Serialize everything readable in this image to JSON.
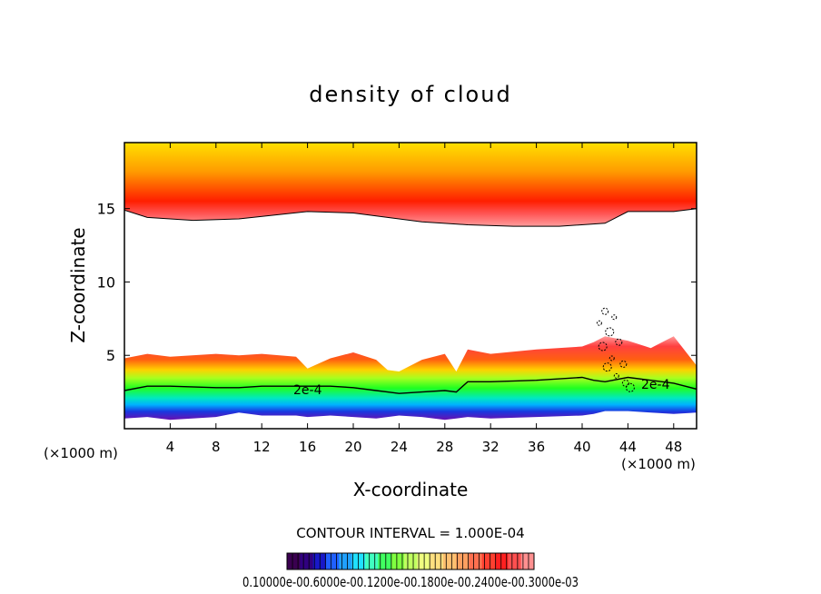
{
  "chart_data": {
    "type": "heatmap",
    "title": "density of cloud",
    "xlabel": "X-coordinate",
    "ylabel": "Z-coordinate",
    "x_unit_left": "(×1000 m)",
    "x_unit_right": "(×1000 m)",
    "xlim": [
      0,
      50
    ],
    "ylim": [
      0,
      19.5
    ],
    "x_ticks": [
      4,
      8,
      12,
      16,
      20,
      24,
      28,
      32,
      36,
      40,
      44,
      48
    ],
    "y_ticks": [
      5,
      10,
      15
    ],
    "contour_interval_text": "CONTOUR INTERVAL = 1.000E-04",
    "contour_label": "2e-4",
    "colorbar_labels_text": "0.10000e-00.6000e-00.1200e-00.1800e-00.2400e-00.3000e-03",
    "upper_layer": {
      "x": [
        0,
        2,
        6,
        10,
        16,
        20,
        26,
        30,
        34,
        38,
        42,
        44,
        48,
        50
      ],
      "bottom_z": [
        14.9,
        14.4,
        14.2,
        14.3,
        14.8,
        14.7,
        14.1,
        13.9,
        13.8,
        13.8,
        14.0,
        14.8,
        14.8,
        15.0
      ],
      "peak_z": [
        16.5,
        16.2,
        16.0,
        16.0,
        16.2,
        16.2,
        16.1,
        16.0,
        16.0,
        16.1,
        16.2,
        16.4,
        16.6,
        17.0
      ]
    },
    "lower_layer": {
      "x": [
        0,
        2,
        4,
        8,
        10,
        12,
        15,
        16,
        18,
        20,
        22,
        23,
        24,
        26,
        28,
        29,
        30,
        32,
        36,
        40,
        41,
        42,
        44,
        46,
        48,
        50
      ],
      "top_z": [
        4.8,
        5.1,
        4.9,
        5.1,
        5.0,
        5.1,
        4.9,
        4.1,
        4.8,
        5.2,
        4.7,
        4.0,
        3.9,
        4.7,
        5.1,
        3.9,
        5.4,
        5.1,
        5.4,
        5.6,
        5.9,
        6.3,
        6.0,
        5.5,
        6.3,
        4.3
      ],
      "contour_2e4_z": [
        2.6,
        2.9,
        2.9,
        2.8,
        2.8,
        2.9,
        2.9,
        2.9,
        2.9,
        2.8,
        2.6,
        2.5,
        2.4,
        2.5,
        2.6,
        2.5,
        3.2,
        3.2,
        3.3,
        3.5,
        3.3,
        3.2,
        3.5,
        3.3,
        3.1,
        2.7
      ],
      "base_z": [
        0.7,
        0.8,
        0.6,
        0.8,
        1.1,
        0.9,
        0.9,
        0.8,
        0.9,
        0.8,
        0.7,
        0.8,
        0.9,
        0.8,
        0.6,
        0.7,
        0.8,
        0.7,
        0.8,
        0.9,
        1.0,
        1.2,
        1.2,
        1.1,
        1.0,
        1.1
      ]
    },
    "colormap": [
      "#4b0082",
      "#2020c0",
      "#1e90ff",
      "#00e5ff",
      "#00e060",
      "#66ff00",
      "#e0ff40",
      "#ffe060",
      "#ffa040",
      "#ff3020",
      "#ff9090"
    ],
    "colorbar_colors": [
      "#3a0050",
      "#300080",
      "#1818c8",
      "#2060ff",
      "#20a0ff",
      "#20e0ff",
      "#40ffc0",
      "#40ff60",
      "#80ff40",
      "#c0ff60",
      "#f0ff80",
      "#ffe080",
      "#ffc070",
      "#ffa060",
      "#ff7050",
      "#ff4030",
      "#ff2020",
      "#ff5050",
      "#ff9090"
    ]
  }
}
